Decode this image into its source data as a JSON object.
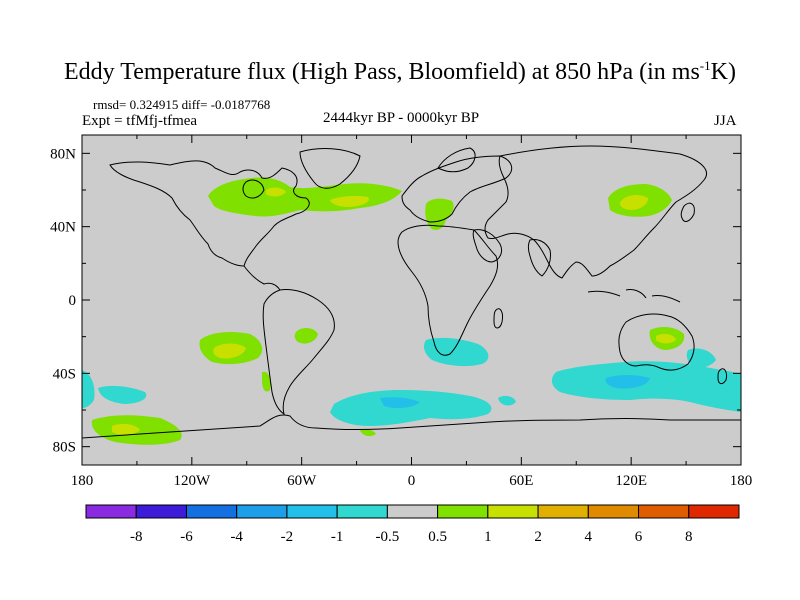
{
  "header": {
    "title_main": "Eddy Temperature flux (High Pass, Bloomfield) at 850 hPa (in ms",
    "title_sup": "-1",
    "title_end": "K)",
    "stats": "rmsd= 0.324915 diff= -0.0187768",
    "experiment": "Expt = tfMfj-tfmea",
    "period": "2444kyr BP - 0000kyr BP",
    "season": "JJA"
  },
  "map": {
    "projection": "cylindrical equidistant",
    "lon_range": [
      -180,
      180
    ],
    "lat_range": [
      -90,
      90
    ],
    "background_color": "#cccccc",
    "coastline_color": "#000000",
    "lat_ticks": [
      "80N",
      "40N",
      "0",
      "40S",
      "80S"
    ],
    "lat_tick_values": [
      80,
      40,
      0,
      -40,
      -80
    ],
    "lon_ticks": [
      "180",
      "120W",
      "60W",
      "0",
      "60E",
      "120E",
      "180"
    ],
    "lon_tick_values": [
      -180,
      -120,
      -60,
      0,
      60,
      120,
      180
    ],
    "anomaly_regions": [
      {
        "region": "North America / North Atlantic",
        "level": "0.5 to 1",
        "color": "#88e000"
      },
      {
        "region": "Europe / Mediterranean",
        "level": "0.5 to 1",
        "color": "#88e000"
      },
      {
        "region": "East Asia",
        "level": "1 to 2",
        "color": "#c8e000"
      },
      {
        "region": "South Pacific",
        "level": "1 to 2",
        "color": "#c8e000"
      },
      {
        "region": "Southern Ocean",
        "level": "-1 to -0.5",
        "color": "#30d0d8"
      },
      {
        "region": "Australia / Tasman Sea",
        "level": "-1 to -0.5",
        "color": "#30d0d8"
      }
    ]
  },
  "colorbar": {
    "labels": [
      "-8",
      "-6",
      "-4",
      "-2",
      "-1",
      "-0.5",
      "0.5",
      "1",
      "2",
      "4",
      "6",
      "8"
    ],
    "colors": [
      "#8a2be2",
      "#3c1cd8",
      "#1470e0",
      "#1c9ee8",
      "#22c0e8",
      "#30d8d0",
      "#cccccc",
      "#80e000",
      "#c8e000",
      "#e0b000",
      "#e08a00",
      "#e05c00",
      "#e02800"
    ]
  }
}
